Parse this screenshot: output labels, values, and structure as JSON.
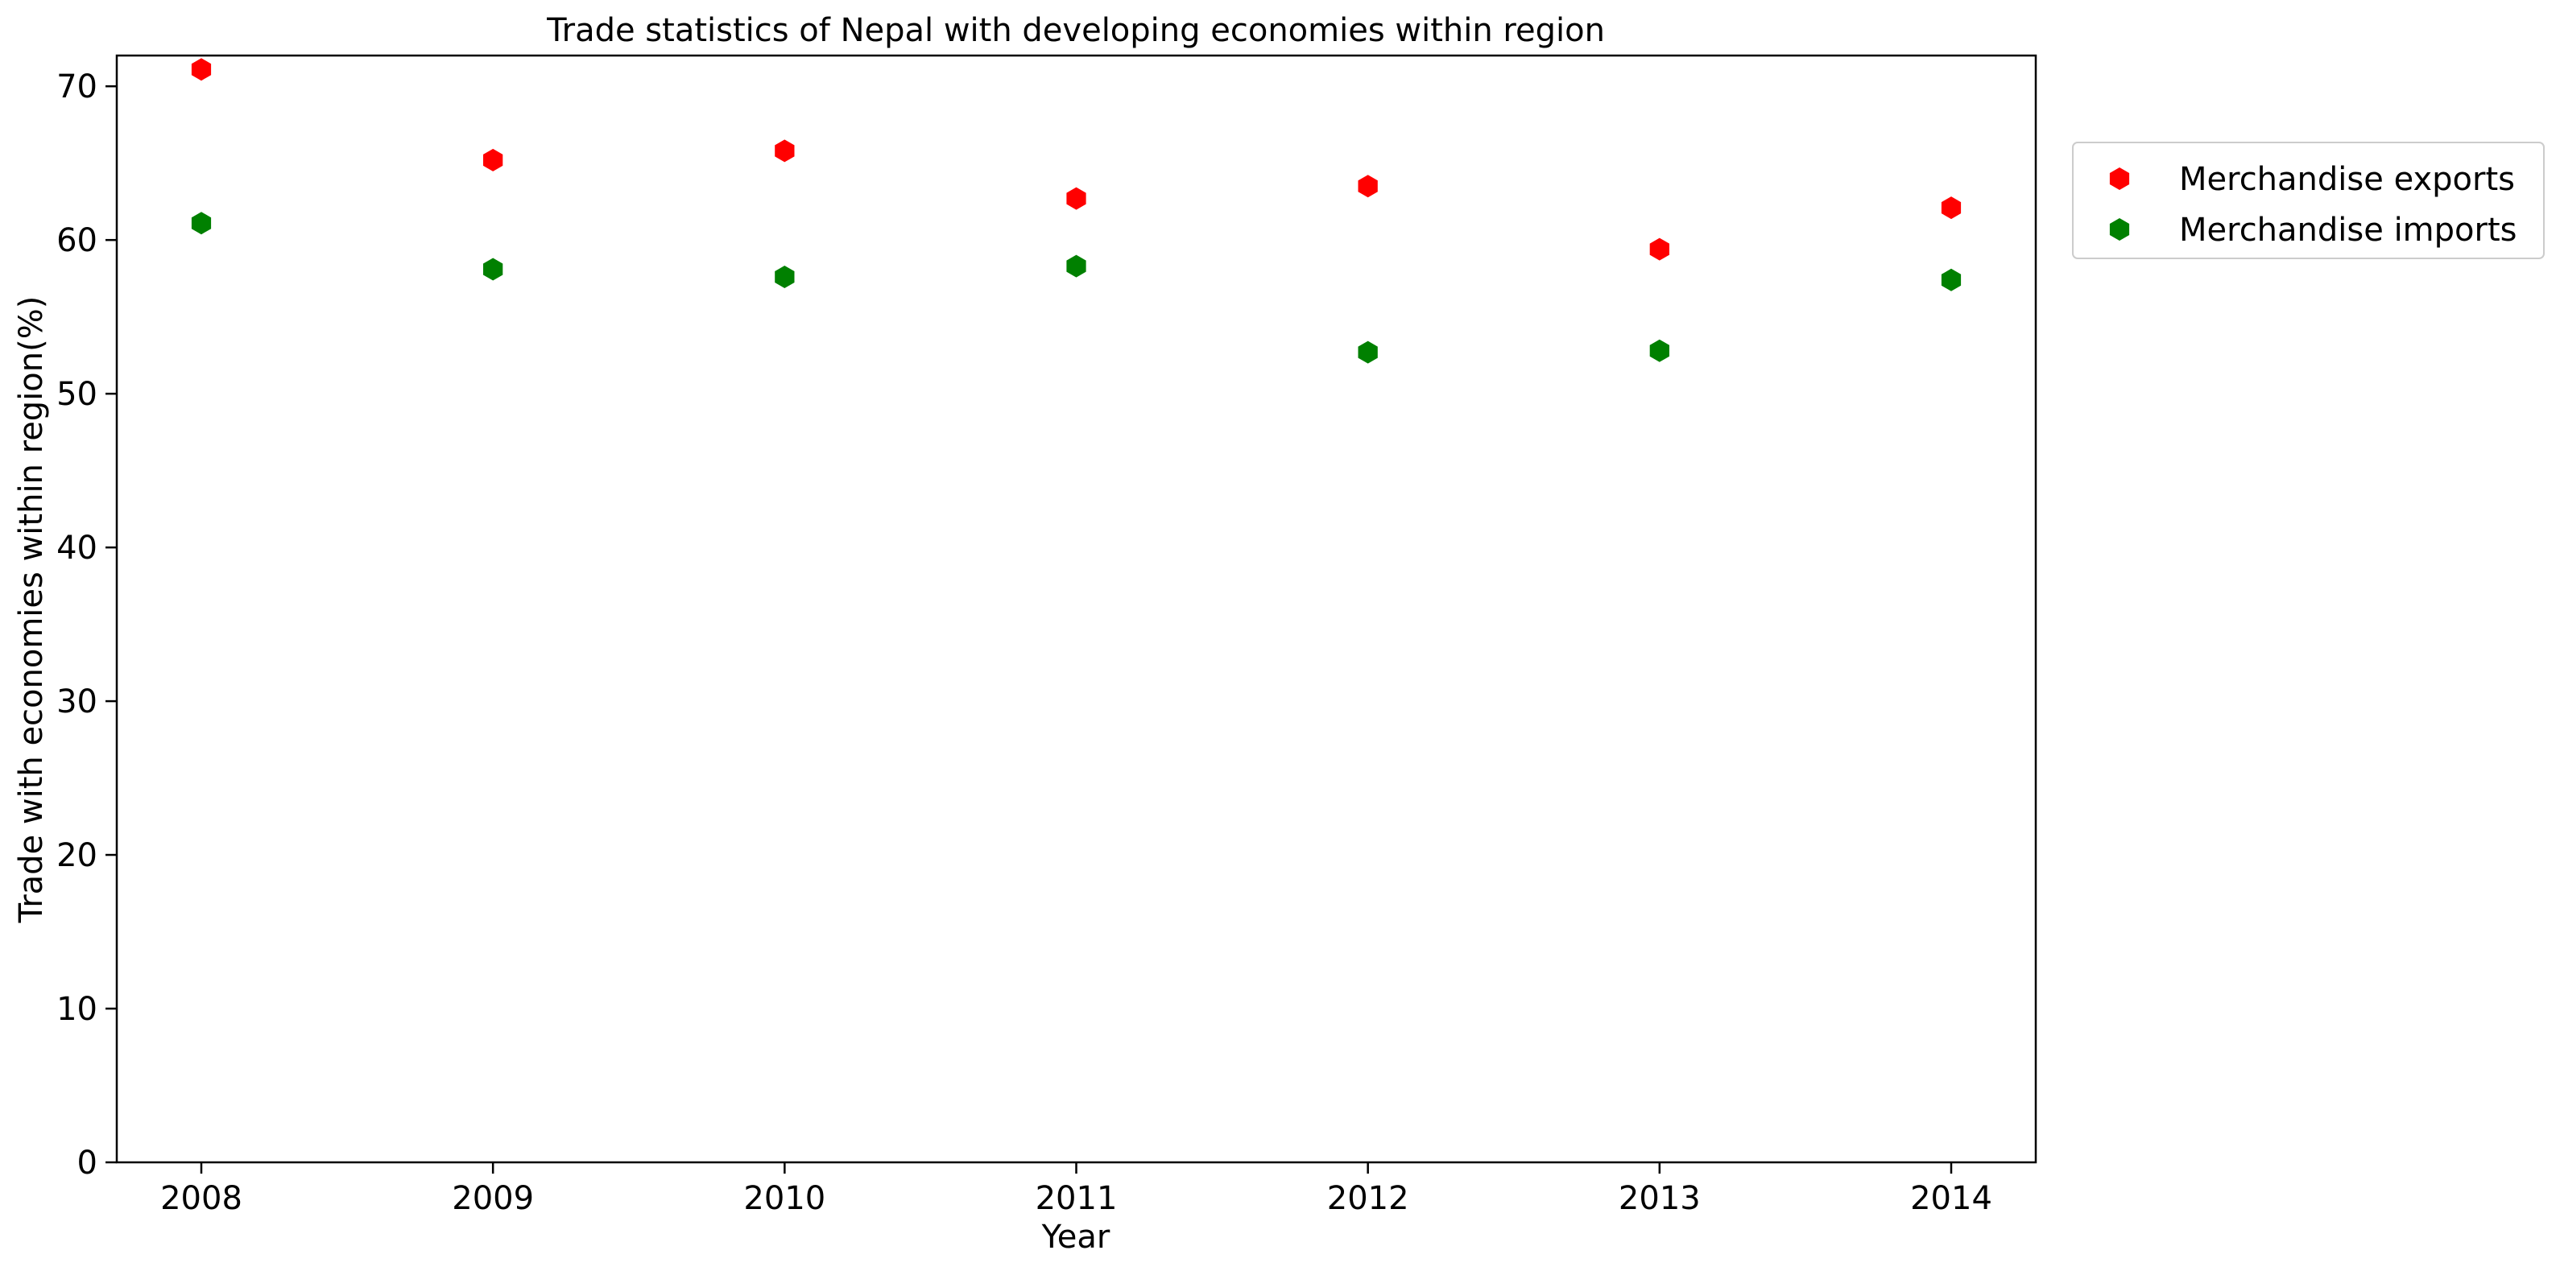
{
  "chart_data": {
    "type": "scatter",
    "title": "Trade statistics of Nepal with developing economies within region",
    "xlabel": "Year",
    "ylabel": "Trade with economies within region(%)",
    "x": [
      "2008",
      "2009",
      "2010",
      "2011",
      "2012",
      "2013",
      "2014"
    ],
    "ylim": [
      0,
      72
    ],
    "yticks": [
      "0",
      "10",
      "20",
      "30",
      "40",
      "50",
      "60",
      "70"
    ],
    "grid": false,
    "legend_position": "outside-top-right",
    "marker": "hexagon",
    "series": [
      {
        "name": "Merchandise exports",
        "color": "#ff0000",
        "values": [
          71.1,
          65.2,
          65.8,
          62.7,
          63.5,
          59.4,
          62.1
        ]
      },
      {
        "name": "Merchandise imports",
        "color": "#008000",
        "values": [
          61.1,
          58.1,
          57.6,
          58.3,
          52.7,
          52.8,
          57.4
        ]
      }
    ]
  }
}
